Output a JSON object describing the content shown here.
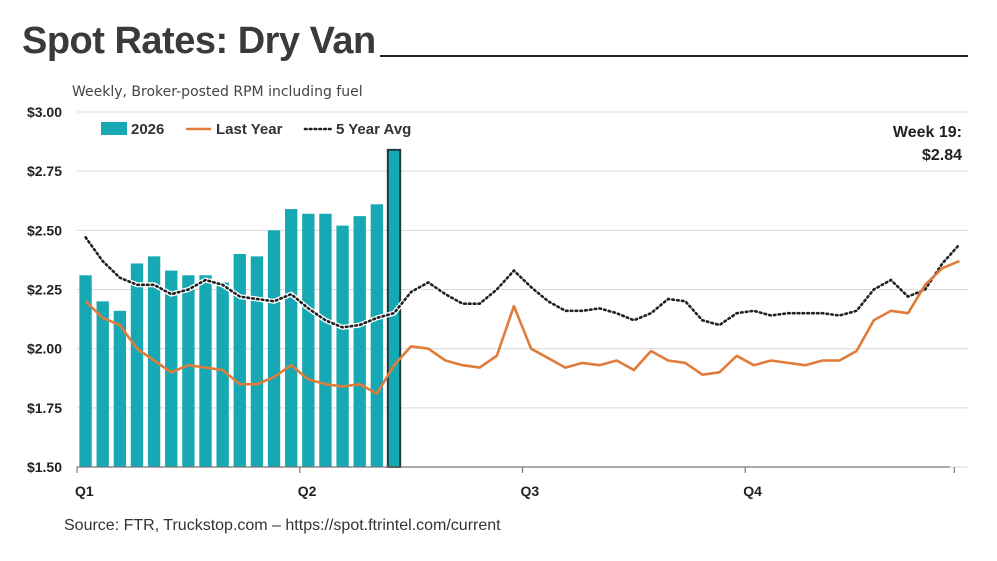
{
  "title": "Spot Rates: Dry Van",
  "subtitle": "Weekly, Broker-posted RPM including fuel",
  "source": "Source: FTR, Truckstop.com – https://spot.ftrintel.com/current",
  "colors": {
    "bars": "#17a9b3",
    "last_year": "#e07b39",
    "avg": "#222222",
    "highlight_border": "#1c3b40"
  },
  "chart_data": {
    "type": "bar",
    "title": "Spot Rates: Dry Van",
    "subtitle": "Weekly, Broker-posted RPM including fuel",
    "ylim": [
      1.5,
      3.0
    ],
    "yticks": [
      1.5,
      1.75,
      2.0,
      2.25,
      2.5,
      2.75,
      3.0
    ],
    "ytick_labels": [
      "$1.50",
      "$1.75",
      "$2.00",
      "$2.25",
      "$2.50",
      "$2.75",
      "$3.00"
    ],
    "xlim": [
      0.5,
      52.5
    ],
    "quarter_ticks": [
      {
        "label": "Q1",
        "week": 0.5
      },
      {
        "label": "Q2",
        "week": 13.5
      },
      {
        "label": "Q3",
        "week": 26.5
      },
      {
        "label": "Q4",
        "week": 39.5
      }
    ],
    "grid": true,
    "legend_position": "top-left",
    "series": [
      {
        "name": "2026",
        "type": "bar",
        "weeks": [
          1,
          2,
          3,
          4,
          5,
          6,
          7,
          8,
          9,
          10,
          11,
          12,
          13,
          14,
          15,
          16,
          17,
          18,
          19
        ],
        "values": [
          2.31,
          2.2,
          2.16,
          2.36,
          2.39,
          2.33,
          2.31,
          2.31,
          2.28,
          2.4,
          2.39,
          2.5,
          2.59,
          2.57,
          2.57,
          2.52,
          2.56,
          2.61,
          2.84
        ]
      },
      {
        "name": "Last Year",
        "type": "line",
        "weeks": [
          1,
          2,
          3,
          4,
          5,
          6,
          7,
          8,
          9,
          10,
          11,
          12,
          13,
          14,
          15,
          16,
          17,
          18,
          19,
          20,
          21,
          22,
          23,
          24,
          25,
          26,
          27,
          28,
          29,
          30,
          31,
          32,
          33,
          34,
          35,
          36,
          37,
          38,
          39,
          40,
          41,
          42,
          43,
          44,
          45,
          46,
          47,
          48,
          49,
          50,
          51,
          52
        ],
        "values": [
          2.2,
          2.13,
          2.1,
          2.0,
          1.95,
          1.9,
          1.93,
          1.92,
          1.91,
          1.85,
          1.85,
          1.88,
          1.93,
          1.87,
          1.85,
          1.84,
          1.85,
          1.81,
          1.93,
          2.01,
          2.0,
          1.95,
          1.93,
          1.92,
          1.97,
          2.18,
          2.0,
          1.96,
          1.92,
          1.94,
          1.93,
          1.95,
          1.91,
          1.99,
          1.95,
          1.94,
          1.89,
          1.9,
          1.97,
          1.93,
          1.95,
          1.94,
          1.93,
          1.95,
          1.95,
          1.99,
          2.12,
          2.16,
          2.15,
          2.27,
          2.34,
          2.37
        ]
      },
      {
        "name": "5 Year Avg",
        "type": "dotted-line",
        "weeks": [
          1,
          2,
          3,
          4,
          5,
          6,
          7,
          8,
          9,
          10,
          11,
          12,
          13,
          14,
          15,
          16,
          17,
          18,
          19,
          20,
          21,
          22,
          23,
          24,
          25,
          26,
          27,
          28,
          29,
          30,
          31,
          32,
          33,
          34,
          35,
          36,
          37,
          38,
          39,
          40,
          41,
          42,
          43,
          44,
          45,
          46,
          47,
          48,
          49,
          50,
          51,
          52
        ],
        "values": [
          2.47,
          2.37,
          2.3,
          2.27,
          2.27,
          2.23,
          2.25,
          2.29,
          2.27,
          2.22,
          2.21,
          2.2,
          2.23,
          2.17,
          2.12,
          2.09,
          2.1,
          2.13,
          2.15,
          2.24,
          2.28,
          2.23,
          2.19,
          2.19,
          2.25,
          2.33,
          2.26,
          2.2,
          2.16,
          2.16,
          2.17,
          2.15,
          2.12,
          2.15,
          2.21,
          2.2,
          2.12,
          2.1,
          2.15,
          2.16,
          2.14,
          2.15,
          2.15,
          2.15,
          2.14,
          2.16,
          2.25,
          2.29,
          2.22,
          2.25,
          2.36,
          2.44
        ]
      }
    ],
    "annotation": {
      "line1": "Week 19:",
      "line2": "$2.84",
      "week": 19
    }
  }
}
